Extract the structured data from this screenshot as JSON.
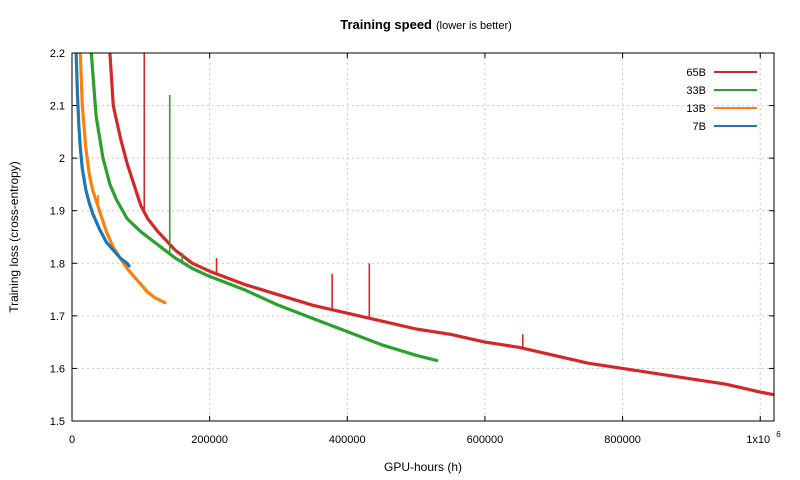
{
  "chart_data": {
    "type": "line",
    "title": "Training speed",
    "subtitle": "(lower is better)",
    "xlabel": "GPU-hours (h)",
    "ylabel": "Training loss (cross-entropy)",
    "xlim": [
      0,
      1020000
    ],
    "ylim": [
      1.5,
      2.2
    ],
    "x_ticks": [
      0,
      200000,
      400000,
      600000,
      800000,
      1000000
    ],
    "x_tick_labels": [
      "0",
      "200000",
      "400000",
      "600000",
      "800000",
      "1x10"
    ],
    "x_tick_last_exponent": "6",
    "y_ticks": [
      1.5,
      1.6,
      1.7,
      1.8,
      1.9,
      2.0,
      2.1,
      2.2
    ],
    "y_tick_labels": [
      "1.5",
      "1.6",
      "1.7",
      "1.8",
      "1.9",
      "2",
      "2.1",
      "2.2"
    ],
    "grid": true,
    "legend_position": "top-right",
    "series": [
      {
        "name": "65B",
        "color": "#d62728",
        "x": [
          55000,
          60000,
          70000,
          80000,
          90000,
          100000,
          110000,
          125000,
          150000,
          175000,
          200000,
          250000,
          300000,
          350000,
          400000,
          450000,
          500000,
          550000,
          600000,
          650000,
          700000,
          750000,
          800000,
          850000,
          900000,
          950000,
          1000000,
          1020000
        ],
        "values": [
          2.2,
          2.1,
          2.04,
          1.99,
          1.95,
          1.91,
          1.885,
          1.86,
          1.825,
          1.8,
          1.785,
          1.76,
          1.74,
          1.72,
          1.705,
          1.69,
          1.675,
          1.665,
          1.65,
          1.64,
          1.625,
          1.61,
          1.6,
          1.59,
          1.58,
          1.57,
          1.555,
          1.55
        ],
        "spikes": [
          {
            "x": 105000,
            "y": 2.2
          },
          {
            "x": 210000,
            "y": 1.81
          },
          {
            "x": 378000,
            "y": 1.78
          },
          {
            "x": 432000,
            "y": 1.8
          },
          {
            "x": 655000,
            "y": 1.665
          }
        ]
      },
      {
        "name": "33B",
        "color": "#2ca02c",
        "x": [
          28000,
          35000,
          45000,
          55000,
          65000,
          80000,
          100000,
          125000,
          150000,
          175000,
          200000,
          250000,
          300000,
          350000,
          400000,
          450000,
          500000,
          530000
        ],
        "values": [
          2.2,
          2.08,
          2.0,
          1.95,
          1.92,
          1.885,
          1.86,
          1.835,
          1.81,
          1.79,
          1.775,
          1.75,
          1.72,
          1.695,
          1.67,
          1.645,
          1.625,
          1.615
        ],
        "spikes": [
          {
            "x": 142000,
            "y": 2.12
          },
          {
            "x": 160000,
            "y": 1.82
          }
        ]
      },
      {
        "name": "13B",
        "color": "#ff7f0e",
        "x": [
          12000,
          15000,
          20000,
          25000,
          30000,
          40000,
          50000,
          60000,
          70000,
          80000,
          90000,
          100000,
          110000,
          120000,
          135000
        ],
        "values": [
          2.2,
          2.1,
          2.02,
          1.97,
          1.94,
          1.9,
          1.86,
          1.83,
          1.81,
          1.79,
          1.775,
          1.76,
          1.745,
          1.735,
          1.725
        ],
        "spikes": [
          {
            "x": 18000,
            "y": 2.04
          },
          {
            "x": 38000,
            "y": 1.93
          }
        ]
      },
      {
        "name": "7B",
        "color": "#1f77b4",
        "x": [
          6000,
          8000,
          10000,
          12000,
          15000,
          20000,
          25000,
          30000,
          40000,
          50000,
          60000,
          70000,
          80000,
          83000
        ],
        "values": [
          2.2,
          2.12,
          2.06,
          2.02,
          1.98,
          1.94,
          1.915,
          1.895,
          1.865,
          1.84,
          1.825,
          1.81,
          1.8,
          1.795
        ],
        "spikes": []
      }
    ]
  }
}
